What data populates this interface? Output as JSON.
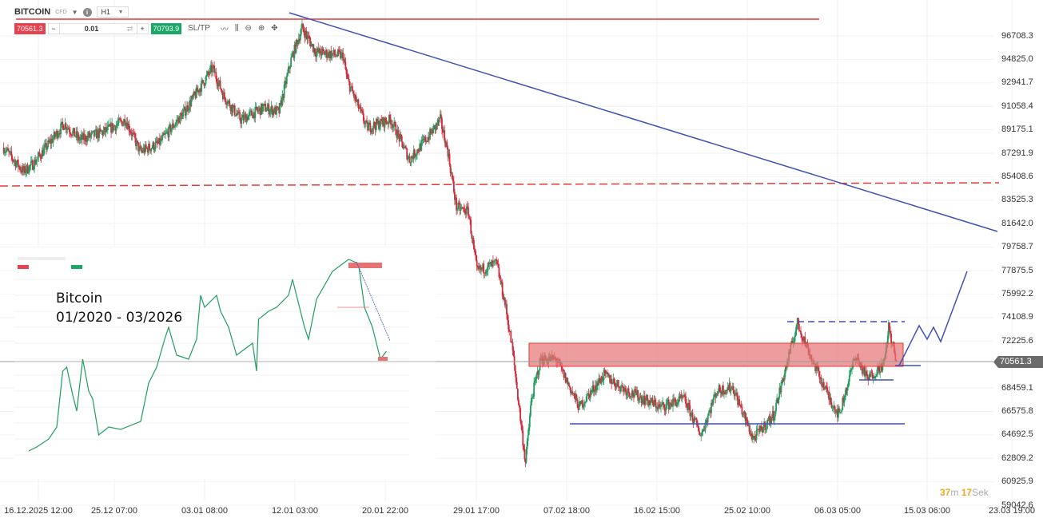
{
  "header": {
    "symbol": "BITCOIN",
    "type": "CFD",
    "info_icon": "info-icon",
    "timeframe": "H1"
  },
  "trade_bar": {
    "sell_price": "70561.3",
    "quantity": "0.01",
    "buy_price": "70793.9",
    "sl_tp_label": "SL/TP",
    "tools": [
      "line-chart-icon",
      "candles-icon",
      "zoom-out-icon",
      "zoom-in-icon",
      "crosshair-move-icon"
    ]
  },
  "price_axis": [
    "96708.3",
    "94825.0",
    "92941.7",
    "91058.4",
    "89175.1",
    "87291.9",
    "85408.6",
    "83525.3",
    "81642.0",
    "79758.7",
    "77875.5",
    "75992.2",
    "74108.9",
    "72225.6",
    "70561.3",
    "68459.1",
    "66575.8",
    "64692.5",
    "62809.2",
    "60925.9",
    "59042.6"
  ],
  "current_price": "70561.3",
  "date_axis": [
    "16.12.2025 12:00",
    "25.12 07:00",
    "03.01 08:00",
    "12.01 03:00",
    "20.01 22:00",
    "29.01 17:00",
    "07.02 18:00",
    "16.02 15:00",
    "25.02 10:00",
    "06.03 05:00",
    "15.03 06:00",
    "23.03 19:00"
  ],
  "countdown": {
    "minutes": "37",
    "min_unit": "m",
    "seconds": "17",
    "sec_unit": "Sek"
  },
  "inset": {
    "title": "Bitcoin",
    "period": "01/2020 - 03/2026"
  },
  "colors": {
    "up": "#1f9d60",
    "down": "#d42a3c",
    "trend": "#3f51b5",
    "resistance": "#e53935",
    "zone": "#e57373"
  },
  "chart_data": {
    "type": "candlestick",
    "timeframe": "H1",
    "price_path": [
      [
        "2025-12-13T14:00",
        87741
      ],
      [
        "2025-12-15T12:00",
        85820
      ],
      [
        "2025-12-16T12:00",
        86460
      ],
      [
        "2025-12-19T12:00",
        89663
      ],
      [
        "2025-12-21T00:00",
        88382
      ],
      [
        "2025-12-23T10:00",
        89022
      ],
      [
        "2025-12-25T12:00",
        89983
      ],
      [
        "2025-12-26T22:00",
        87421
      ],
      [
        "2025-12-28T18:00",
        88061
      ],
      [
        "2025-12-31T06:00",
        90624
      ],
      [
        "2026-01-03T00:00",
        94146
      ],
      [
        "2026-01-04T02:00",
        91904
      ],
      [
        "2026-01-05T18:00",
        89983
      ],
      [
        "2026-01-08T00:00",
        90944
      ],
      [
        "2026-01-09T12:00",
        90624
      ],
      [
        "2026-01-10T16:00",
        94787
      ],
      [
        "2026-01-11T18:00",
        97349
      ],
      [
        "2026-01-13T02:00",
        95427
      ],
      [
        "2026-01-15T18:00",
        95107
      ],
      [
        "2026-01-16T04:00",
        93186
      ],
      [
        "2026-01-18T02:00",
        89343
      ],
      [
        "2026-01-20T10:00",
        89983
      ],
      [
        "2026-01-22T06:00",
        86781
      ],
      [
        "2026-01-24T04:00",
        88702
      ],
      [
        "2026-01-25T06:00",
        89983
      ],
      [
        "2026-01-26T00:00",
        87421
      ],
      [
        "2026-01-26T20:00",
        82938
      ],
      [
        "2026-01-28T00:00",
        82618
      ],
      [
        "2026-01-28T20:00",
        77814
      ],
      [
        "2026-01-30T18:00",
        78455
      ],
      [
        "2026-01-31T14:00",
        75252
      ],
      [
        "2026-02-01T08:00",
        71409
      ],
      [
        "2026-02-02T14:00",
        62442
      ],
      [
        "2026-02-03T04:00",
        67566
      ],
      [
        "2026-02-04T02:00",
        70768
      ],
      [
        "2026-02-05T14:00",
        70768
      ],
      [
        "2026-02-07T20:00",
        66925
      ],
      [
        "2026-02-10T06:00",
        69487
      ],
      [
        "2026-02-12T14:00",
        68206
      ],
      [
        "2026-02-15T18:00",
        66925
      ],
      [
        "2026-02-18T02:00",
        67566
      ],
      [
        "2026-02-19T18:00",
        64683
      ],
      [
        "2026-02-21T06:00",
        68206
      ],
      [
        "2026-02-22T20:00",
        68527
      ],
      [
        "2026-02-24T20:00",
        64363
      ],
      [
        "2026-02-26T20:00",
        66285
      ],
      [
        "2026-03-01T04:00",
        73650
      ],
      [
        "2026-03-02T18:00",
        70448
      ],
      [
        "2026-03-04T08:00",
        67566
      ],
      [
        "2026-03-05T06:00",
        66285
      ],
      [
        "2026-03-06T20:00",
        71089
      ],
      [
        "2026-03-08T00:00",
        69167
      ],
      [
        "2026-03-09T16:00",
        70448
      ],
      [
        "2026-03-10T02:00",
        73330
      ],
      [
        "2026-03-10T20:00",
        70561
      ]
    ],
    "levels": {
      "resistance_top": 98050,
      "dashed_resistance": 84800,
      "zone_high": 72050,
      "zone_low": 70190,
      "range_high": 73780,
      "support": 65580
    }
  }
}
